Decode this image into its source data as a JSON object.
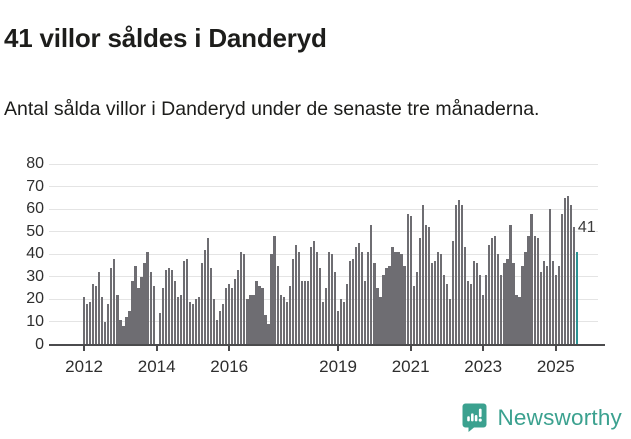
{
  "header": {
    "title": "41 villor såldes i Danderyd",
    "subtitle": "Antal sålda villor i Danderyd under de senaste tre månaderna."
  },
  "branding": {
    "name": "Newsworthy",
    "logo_icon": "bar-chart-speech-bubble-icon"
  },
  "colors": {
    "bar": "#6e6d72",
    "highlight": "#2b9393",
    "grid": "#e4e4e4",
    "axis": "#4b4b4d",
    "title_text": "#1d1d1b",
    "tick_text": "#2e2e2e",
    "annotation_text": "#3c3c3c",
    "brand": "#3ba18f",
    "background": "#ffffff"
  },
  "chart_data": {
    "type": "bar",
    "title": "41 villor såldes i Danderyd",
    "subtitle": "Antal sålda villor i Danderyd under de senaste tre månaderna.",
    "xlabel": "",
    "ylabel": "",
    "x_start": "2012-01",
    "x_end": "2025-08",
    "frequency": "monthly",
    "values": [
      21,
      18,
      19,
      27,
      26,
      32,
      21,
      10,
      18,
      34,
      38,
      22,
      11,
      8,
      12,
      15,
      28,
      35,
      25,
      30,
      36,
      41,
      32,
      26,
      0,
      14,
      25,
      33,
      34,
      33,
      28,
      21,
      22,
      37,
      38,
      19,
      18,
      20,
      21,
      36,
      42,
      47,
      34,
      20,
      11,
      15,
      18,
      25,
      27,
      25,
      29,
      33,
      41,
      40,
      20,
      22,
      22,
      28,
      26,
      25,
      13,
      9,
      40,
      48,
      35,
      22,
      21,
      19,
      26,
      38,
      44,
      41,
      28,
      28,
      28,
      43,
      46,
      41,
      34,
      19,
      25,
      41,
      40,
      32,
      15,
      20,
      19,
      27,
      37,
      38,
      43,
      45,
      41,
      28,
      41,
      53,
      36,
      25,
      21,
      31,
      34,
      35,
      43,
      41,
      41,
      40,
      35,
      58,
      57,
      26,
      32,
      47,
      62,
      53,
      52,
      36,
      37,
      41,
      40,
      31,
      27,
      20,
      46,
      62,
      64,
      62,
      43,
      28,
      27,
      37,
      36,
      31,
      22,
      31,
      44,
      47,
      48,
      40,
      31,
      36,
      38,
      53,
      36,
      22,
      21,
      35,
      41,
      48,
      58,
      48,
      47,
      32,
      37,
      35,
      60,
      37,
      31,
      35,
      58,
      65,
      66,
      62,
      52,
      41
    ],
    "highlight": {
      "index": 163,
      "month": "2025-08",
      "value": 41,
      "label": "41"
    },
    "ylim": [
      0,
      80
    ],
    "yticks": [
      0,
      10,
      20,
      30,
      40,
      50,
      60,
      70,
      80
    ],
    "xticks": [
      2012,
      2014,
      2016,
      2019,
      2021,
      2023,
      2025
    ],
    "grid": "horizontal",
    "legend": "none"
  }
}
